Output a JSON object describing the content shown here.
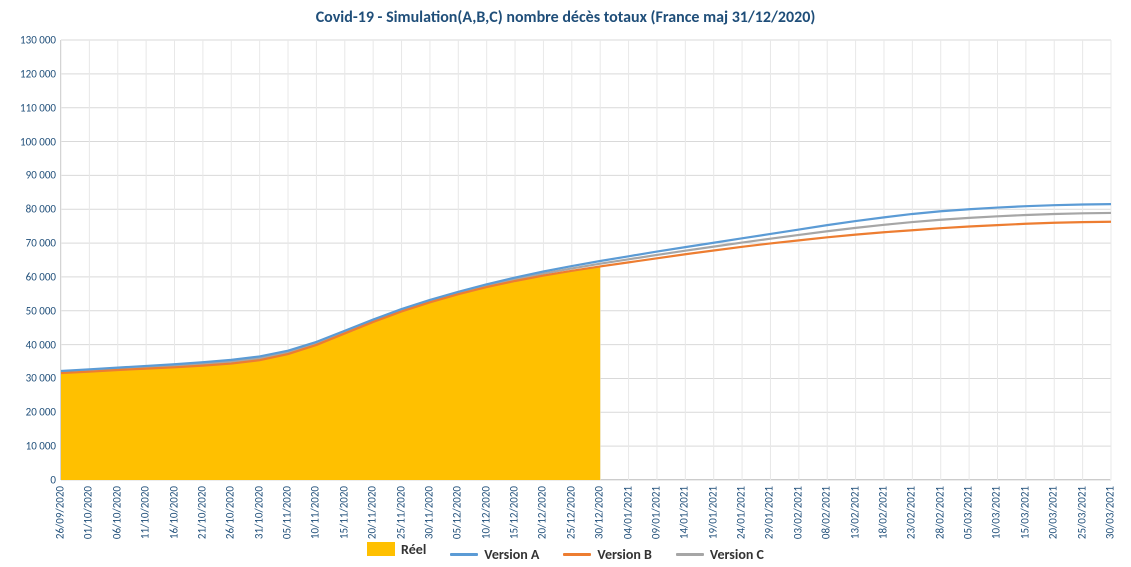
{
  "title": {
    "text": "Covid-19 - Simulation(A,B,C) nombre décès totaux (France maj 31/12/2020)",
    "fontsize": 16,
    "color": "#1f4e79"
  },
  "chart": {
    "type": "line+area",
    "background_color": "#ffffff",
    "grid_color": "#d9d9d9",
    "vgrid_color": "#e8e8e8",
    "axis_color": "#bfbfbf",
    "ylim": [
      0,
      130000
    ],
    "ytick_step": 10000,
    "tick_label_color": "#1f4e79",
    "tick_fontsize": 11,
    "x_labels": [
      "26/09/2020",
      "01/10/2020",
      "06/10/2020",
      "11/10/2020",
      "16/10/2020",
      "21/10/2020",
      "26/10/2020",
      "31/10/2020",
      "05/11/2020",
      "10/11/2020",
      "15/11/2020",
      "20/11/2020",
      "25/11/2020",
      "30/11/2020",
      "05/12/2020",
      "10/12/2020",
      "15/12/2020",
      "20/12/2020",
      "25/12/2020",
      "30/12/2020",
      "04/01/2021",
      "09/01/2021",
      "14/01/2021",
      "19/01/2021",
      "24/01/2021",
      "29/01/2021",
      "03/02/2021",
      "08/02/2021",
      "13/02/2021",
      "18/02/2021",
      "23/02/2021",
      "28/02/2021",
      "05/03/2021",
      "10/03/2021",
      "15/03/2021",
      "20/03/2021",
      "25/03/2021",
      "30/03/2021"
    ],
    "legend": {
      "fontsize": 14,
      "fontweight": "bold",
      "color": "#333333",
      "position": "bottom-center",
      "items": [
        {
          "key": "reel",
          "label": "Réel",
          "swatch": "box",
          "color": "#ffc000"
        },
        {
          "key": "versionA",
          "label": "Version A",
          "swatch": "line",
          "color": "#5b9bd5"
        },
        {
          "key": "versionB",
          "label": "Version B",
          "swatch": "line",
          "color": "#ed7d31"
        },
        {
          "key": "versionC",
          "label": "Version C",
          "swatch": "line",
          "color": "#a6a6a6"
        }
      ]
    },
    "series": {
      "reel": {
        "type": "area",
        "color": "#ffc000",
        "fill_opacity": 1.0,
        "values": [
          31500,
          31900,
          32400,
          32800,
          33200,
          33700,
          34300,
          35300,
          37100,
          39800,
          43200,
          46600,
          49700,
          52400,
          54800,
          56900,
          58700,
          60300,
          61700,
          63000
        ]
      },
      "versionA": {
        "type": "line",
        "color": "#5b9bd5",
        "line_width": 2.2,
        "values": [
          32200,
          32700,
          33200,
          33700,
          34200,
          34800,
          35500,
          36500,
          38200,
          40800,
          44100,
          47400,
          50500,
          53200,
          55600,
          57800,
          59800,
          61600,
          63200,
          64700,
          66100,
          67500,
          68800,
          70100,
          71400,
          72700,
          74000,
          75300,
          76500,
          77600,
          78600,
          79400,
          80000,
          80500,
          80900,
          81200,
          81400,
          81500
        ]
      },
      "versionB": {
        "type": "line",
        "color": "#ed7d31",
        "line_width": 2.2,
        "values": [
          31600,
          32000,
          32500,
          32900,
          33300,
          33800,
          34400,
          35400,
          37200,
          39900,
          43300,
          46700,
          49800,
          52500,
          54900,
          57000,
          58800,
          60400,
          61800,
          63100,
          64300,
          65500,
          66700,
          67800,
          68900,
          69900,
          70800,
          71700,
          72500,
          73200,
          73800,
          74400,
          74900,
          75300,
          75700,
          76000,
          76200,
          76300
        ]
      },
      "versionC": {
        "type": "line",
        "color": "#a6a6a6",
        "line_width": 2.2,
        "values": [
          31900,
          32350,
          32850,
          33300,
          33750,
          34300,
          34950,
          35950,
          37650,
          40350,
          43700,
          47050,
          50150,
          52850,
          55250,
          57400,
          59300,
          61000,
          62500,
          63900,
          65200,
          66500,
          67750,
          68950,
          70150,
          71300,
          72400,
          73500,
          74500,
          75400,
          76200,
          76900,
          77450,
          77900,
          78300,
          78600,
          78800,
          78900
        ]
      }
    }
  }
}
